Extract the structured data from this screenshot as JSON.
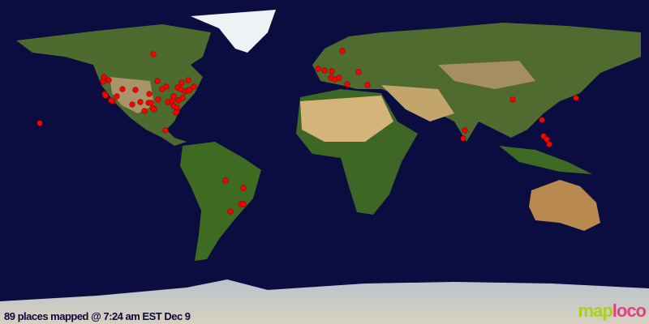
{
  "caption": "89 places mapped @ 7:24 am EST Dec 9",
  "logo": {
    "part1": "map",
    "part2": "loco"
  },
  "colors": {
    "ocean": "#0b0c40",
    "marker": "#ff0000",
    "land": "#4a6a2c",
    "desert": "#c8a86a",
    "ice": "#e8eef2"
  },
  "marker_icon": "red-dot",
  "markers": [
    [
      -94.95,
      59.85
    ],
    [
      -122.4,
      47.25
    ],
    [
      -119.7,
      45.45
    ],
    [
      -122.85,
      44.55
    ],
    [
      -121.95,
      37.8
    ],
    [
      -121.5,
      36.9
    ],
    [
      -112.05,
      40.5
    ],
    [
      -104.85,
      40.05
    ],
    [
      -115.2,
      36.45
    ],
    [
      -117.45,
      33.75
    ],
    [
      -118.35,
      34.2
    ],
    [
      -106.65,
      31.95
    ],
    [
      -102.15,
      33.3
    ],
    [
      -97.2,
      37.8
    ],
    [
      -97.65,
      32.85
    ],
    [
      -96.3,
      32.85
    ],
    [
      -99.9,
      28.35
    ],
    [
      -95.4,
      30.15
    ],
    [
      -94.5,
      29.25
    ],
    [
      -92.7,
      45
    ],
    [
      -90,
      40.5
    ],
    [
      -87.75,
      41.85
    ],
    [
      -92.25,
      34.65
    ],
    [
      -86.85,
      33.3
    ],
    [
      -84.6,
      33.75
    ],
    [
      -83.7,
      36.45
    ],
    [
      -83.7,
      31.05
    ],
    [
      -81.9,
      30.15
    ],
    [
      -81.9,
      27.9
    ],
    [
      -82.35,
      27.45
    ],
    [
      -81,
      34.2
    ],
    [
      -78.75,
      35.55
    ],
    [
      -81.45,
      41.4
    ],
    [
      -79.65,
      40.5
    ],
    [
      -79.2,
      44.1
    ],
    [
      -75.6,
      45.45
    ],
    [
      -77.4,
      39.15
    ],
    [
      -76.05,
      39.6
    ],
    [
      -74.7,
      40.05
    ],
    [
      -72.45,
      41.85
    ],
    [
      -88.2,
      17.55
    ],
    [
      -157.95,
      21.6
    ],
    [
      9.9,
      61.65
    ],
    [
      -3.6,
      51.75
    ],
    [
      0,
      50.85
    ],
    [
      4.05,
      50.4
    ],
    [
      3.6,
      46.8
    ],
    [
      5.85,
      45.9
    ],
    [
      8.1,
      46.8
    ],
    [
      18.9,
      49.95
    ],
    [
      12.6,
      43.2
    ],
    [
      23.85,
      42.75
    ],
    [
      104.4,
      34.65
    ],
    [
      139.5,
      35.55
    ],
    [
      120.6,
      23.4
    ],
    [
      121.5,
      14.4
    ],
    [
      123.3,
      12.6
    ],
    [
      124.65,
      9.9
    ],
    [
      77.85,
      17.55
    ],
    [
      76.95,
      13.05
    ],
    [
      -54.9,
      -10.35
    ],
    [
      -45,
      -14.4
    ],
    [
      -46.35,
      -23.4
    ],
    [
      -45,
      -23.4
    ],
    [
      -52.2,
      -27.45
    ]
  ]
}
